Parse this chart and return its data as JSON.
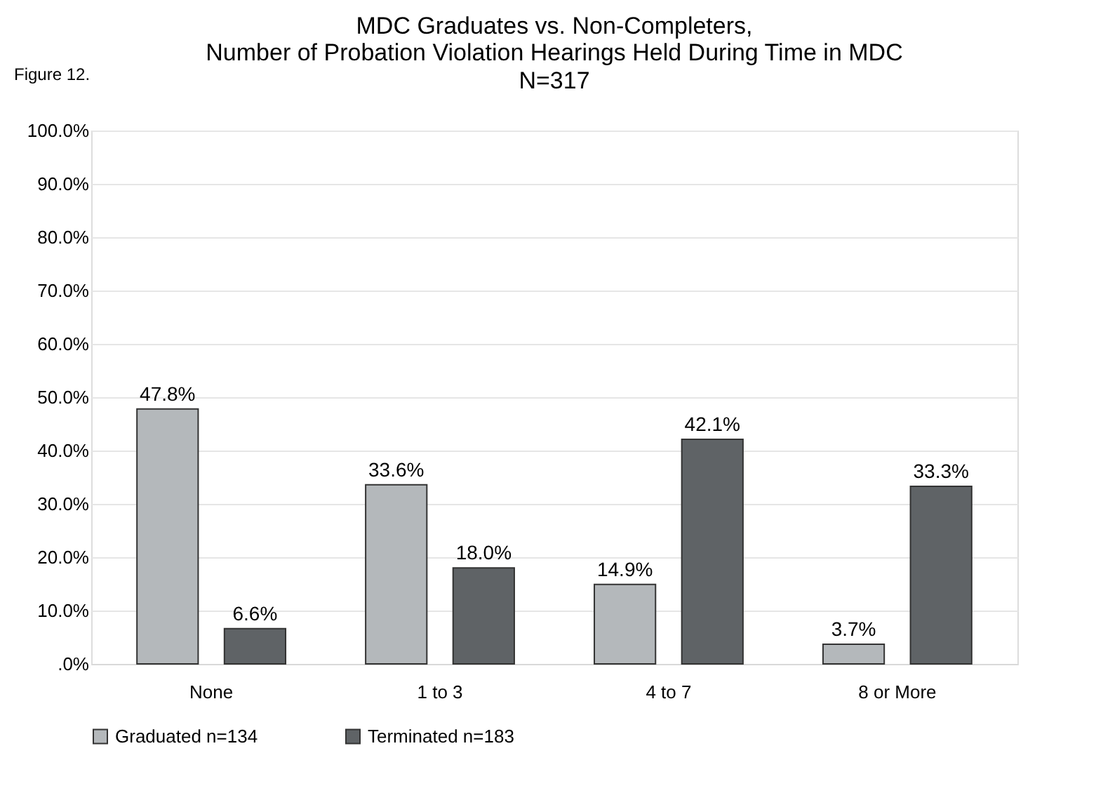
{
  "chart_data": {
    "type": "bar",
    "title": "MDC Graduates vs. Non-Completers,\nNumber of Probation Violation Hearings Held During Time in MDC",
    "subtitle": "N=317",
    "annotations": [
      "Figure  12."
    ],
    "categories": [
      "None",
      "1 to 3",
      "4 to 7",
      "8 or More"
    ],
    "series": [
      {
        "name": "Graduated n=134",
        "color": "#b4b8bb",
        "values": [
          47.8,
          33.6,
          14.9,
          3.7
        ]
      },
      {
        "name": "Terminated n=183",
        "color": "#5f6366",
        "values": [
          6.6,
          18.0,
          42.1,
          33.3
        ]
      }
    ],
    "value_labels": [
      [
        "47.8%",
        "33.6%",
        "14.9%",
        "3.7%"
      ],
      [
        "6.6%",
        "18.0%",
        "42.1%",
        "33.3%"
      ]
    ],
    "ylim": [
      0,
      100
    ],
    "yticks": [
      {
        "value": 0,
        "label": ".0%"
      },
      {
        "value": 10,
        "label": "10.0%"
      },
      {
        "value": 20,
        "label": "20.0%"
      },
      {
        "value": 30,
        "label": "30.0%"
      },
      {
        "value": 40,
        "label": "40.0%"
      },
      {
        "value": 50,
        "label": "50.0%"
      },
      {
        "value": 60,
        "label": "60.0%"
      },
      {
        "value": 70,
        "label": "70.0%"
      },
      {
        "value": 80,
        "label": "80.0%"
      },
      {
        "value": 90,
        "label": "90.0%"
      },
      {
        "value": 100,
        "label": "100.0%"
      }
    ],
    "grid": "y",
    "legend": "bottom"
  }
}
